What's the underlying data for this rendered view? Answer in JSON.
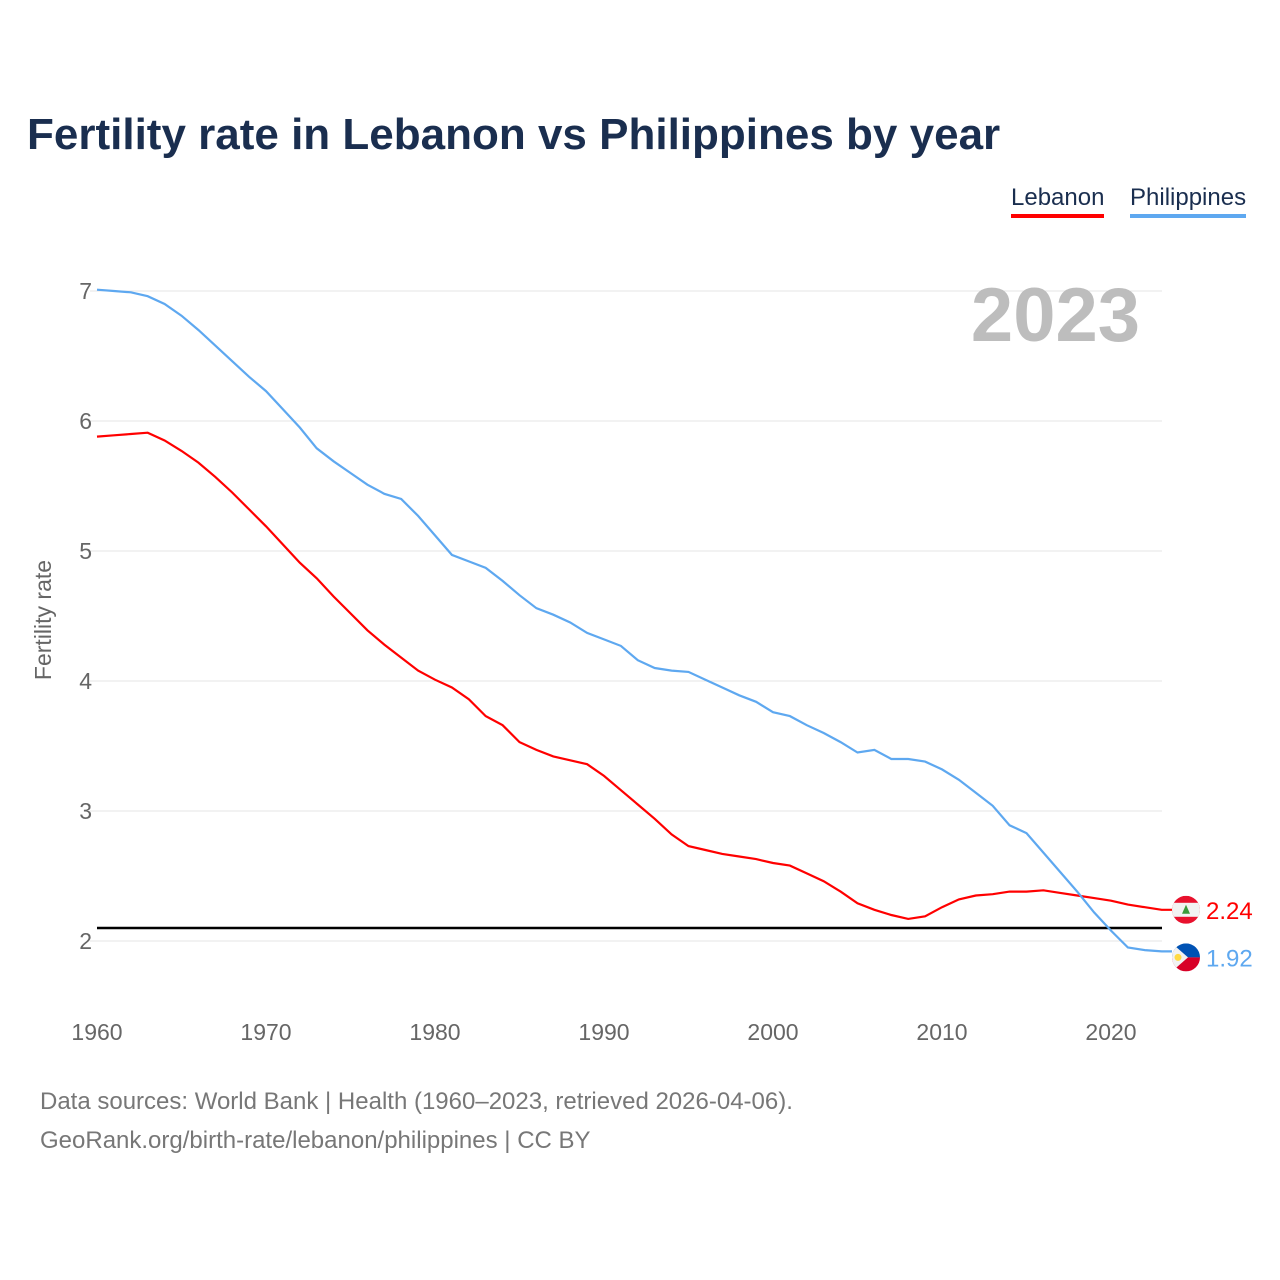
{
  "chart_data": {
    "type": "line",
    "title": "Fertility rate in Lebanon vs Philippines by year",
    "ylabel": "Fertility rate",
    "xlabel": "",
    "xlim": [
      1960,
      2023
    ],
    "ylim": [
      1.5,
      7.2
    ],
    "x_ticks": [
      1960,
      1970,
      1980,
      1990,
      2000,
      2010,
      2020
    ],
    "y_ticks": [
      2,
      3,
      4,
      5,
      6,
      7
    ],
    "grid": true,
    "legend_position": "top-right",
    "year_watermark": "2023",
    "reference_line": 2.1,
    "x": [
      1960,
      1961,
      1962,
      1963,
      1964,
      1965,
      1966,
      1967,
      1968,
      1969,
      1970,
      1971,
      1972,
      1973,
      1974,
      1975,
      1976,
      1977,
      1978,
      1979,
      1980,
      1981,
      1982,
      1983,
      1984,
      1985,
      1986,
      1987,
      1988,
      1989,
      1990,
      1991,
      1992,
      1993,
      1994,
      1995,
      1996,
      1997,
      1998,
      1999,
      2000,
      2001,
      2002,
      2003,
      2004,
      2005,
      2006,
      2007,
      2008,
      2009,
      2010,
      2011,
      2012,
      2013,
      2014,
      2015,
      2016,
      2017,
      2018,
      2019,
      2020,
      2021,
      2022,
      2023
    ],
    "series": [
      {
        "name": "Lebanon",
        "color": "#ff0000",
        "end_label": "2.24",
        "values": [
          5.88,
          5.89,
          5.9,
          5.91,
          5.85,
          5.77,
          5.68,
          5.57,
          5.45,
          5.32,
          5.19,
          5.05,
          4.91,
          4.79,
          4.65,
          4.52,
          4.39,
          4.28,
          4.18,
          4.08,
          4.01,
          3.95,
          3.86,
          3.73,
          3.66,
          3.53,
          3.47,
          3.42,
          3.39,
          3.36,
          3.27,
          3.16,
          3.05,
          2.94,
          2.82,
          2.73,
          2.7,
          2.67,
          2.65,
          2.63,
          2.6,
          2.58,
          2.52,
          2.46,
          2.38,
          2.29,
          2.24,
          2.2,
          2.17,
          2.19,
          2.26,
          2.32,
          2.35,
          2.36,
          2.38,
          2.38,
          2.39,
          2.37,
          2.35,
          2.33,
          2.31,
          2.28,
          2.26,
          2.24
        ]
      },
      {
        "name": "Philippines",
        "color": "#5ea8f0",
        "end_label": "1.92",
        "values": [
          7.01,
          7.0,
          6.99,
          6.96,
          6.9,
          6.81,
          6.7,
          6.58,
          6.46,
          6.34,
          6.23,
          6.09,
          5.95,
          5.79,
          5.69,
          5.6,
          5.51,
          5.44,
          5.4,
          5.27,
          5.12,
          4.97,
          4.92,
          4.87,
          4.77,
          4.66,
          4.56,
          4.51,
          4.45,
          4.37,
          4.32,
          4.27,
          4.16,
          4.1,
          4.08,
          4.07,
          4.01,
          3.95,
          3.89,
          3.84,
          3.76,
          3.73,
          3.66,
          3.6,
          3.53,
          3.45,
          3.47,
          3.4,
          3.4,
          3.38,
          3.32,
          3.24,
          3.14,
          3.04,
          2.89,
          2.83,
          2.68,
          2.53,
          2.38,
          2.22,
          2.08,
          1.95,
          1.93,
          1.92
        ]
      }
    ]
  },
  "footer": {
    "sources": "Data sources: World Bank | Health (1960–2023, retrieved 2026-04-06).",
    "link": "GeoRank.org/birth-rate/lebanon/philippines | CC BY"
  }
}
